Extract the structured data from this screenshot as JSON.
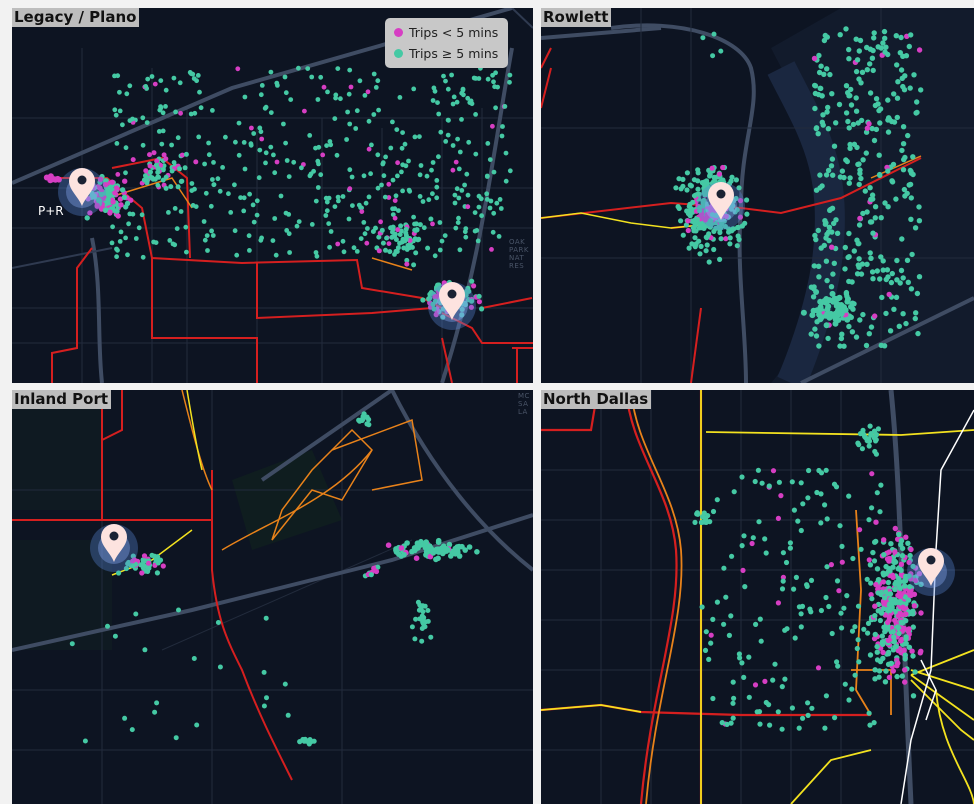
{
  "panels": {
    "legacy_plano": {
      "title": "Legacy / Plano",
      "pin_label": "P+R",
      "faint_label": "OAK PARK NAT RES"
    },
    "rowlett": {
      "title": "Rowlett"
    },
    "inland_port": {
      "title": "Inland Port",
      "faint_label": "MC SA LA"
    },
    "north_dallas": {
      "title": "North Dallas"
    }
  },
  "legend": {
    "items": [
      {
        "label": "Trips < 5 mins",
        "color": "#d63ec3"
      },
      {
        "label": "Trips ≥ 5 mins",
        "color": "#45c9a4"
      }
    ]
  },
  "colors": {
    "map_background": "#0d1422",
    "street_grid": "#2a3346",
    "highway": "#3f4c63",
    "route_red": "#d51f1f",
    "route_orange": "#e8821a",
    "route_yellow": "#f3e21f",
    "pin": "#fde3df",
    "pin_glow": "#5a86d8"
  },
  "icons": {
    "pin": "map-pin-icon"
  }
}
